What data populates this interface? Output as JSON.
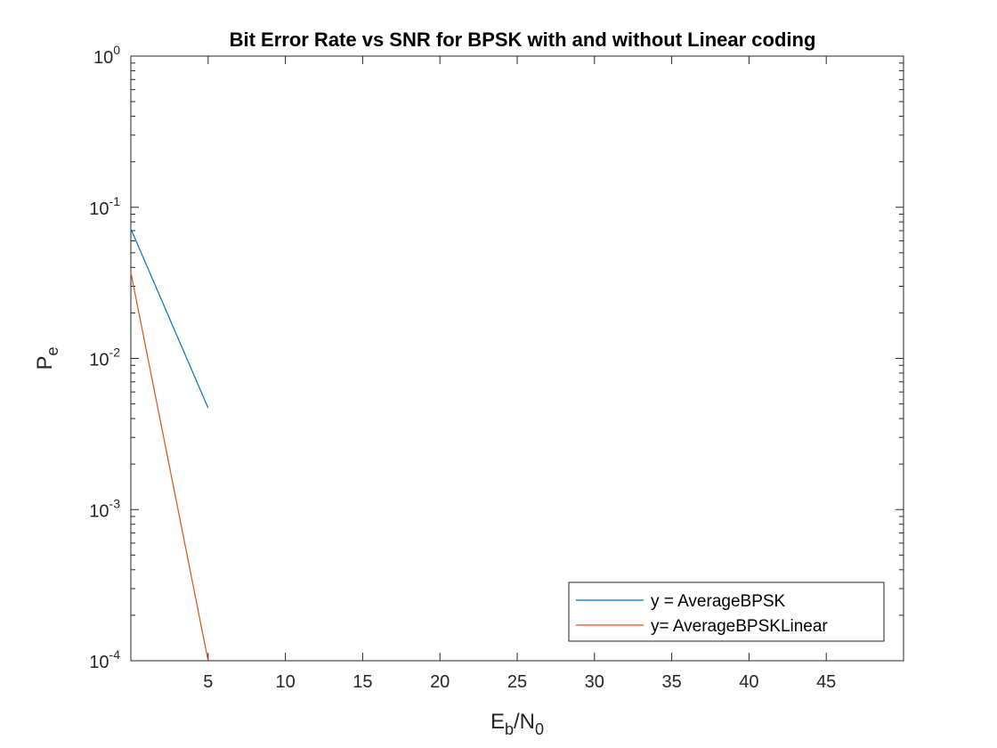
{
  "chart_data": {
    "type": "line",
    "title": "Bit Error Rate vs SNR for BPSK with and without Linear coding",
    "xlabel": {
      "main": "E",
      "sub1": "b",
      "mid": "/N",
      "sub2": "0"
    },
    "ylabel": {
      "main": "P",
      "sub": "e"
    },
    "xlim": [
      0,
      50
    ],
    "ylim": [
      0.0001,
      1
    ],
    "yscale": "log",
    "x_ticks": [
      {
        "value": 5,
        "label": "5"
      },
      {
        "value": 10,
        "label": "10"
      },
      {
        "value": 15,
        "label": "15"
      },
      {
        "value": 20,
        "label": "20"
      },
      {
        "value": 25,
        "label": "25"
      },
      {
        "value": 30,
        "label": "30"
      },
      {
        "value": 35,
        "label": "35"
      },
      {
        "value": 40,
        "label": "40"
      },
      {
        "value": 45,
        "label": "45"
      }
    ],
    "y_ticks": [
      {
        "value": 1,
        "base": "10",
        "exp": "0"
      },
      {
        "value": 0.1,
        "base": "10",
        "exp": "-1"
      },
      {
        "value": 0.01,
        "base": "10",
        "exp": "-2"
      },
      {
        "value": 0.001,
        "base": "10",
        "exp": "-3"
      },
      {
        "value": 0.0001,
        "base": "10",
        "exp": "-4"
      }
    ],
    "grid": false,
    "legend_position": "bottom-right",
    "series": [
      {
        "name": "y = AverageBPSK",
        "color": "#0072BD",
        "x": [
          0,
          5
        ],
        "y": [
          0.072,
          0.0047
        ]
      },
      {
        "name": "y= AverageBPSKLinear",
        "color": "#D95319",
        "x": [
          0,
          5
        ],
        "y": [
          0.037,
          0.0001
        ]
      }
    ]
  }
}
